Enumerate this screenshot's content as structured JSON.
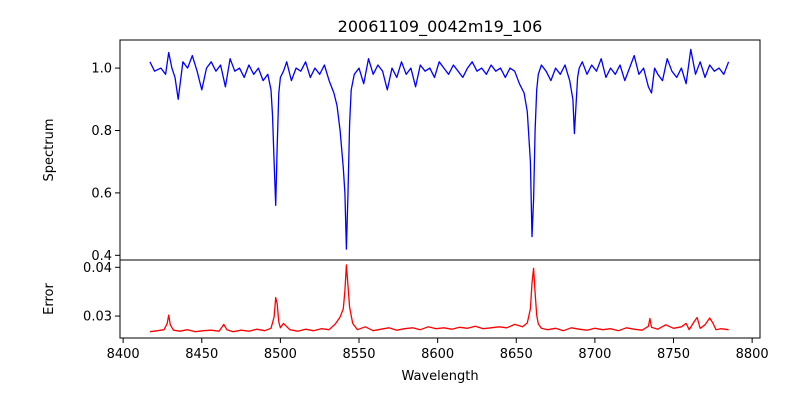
{
  "chart_data": {
    "type": "line",
    "title": "20061109_0042m19_106",
    "xlabel": "Wavelength",
    "xlim": [
      8398,
      8805
    ],
    "xticks": [
      8400,
      8450,
      8500,
      8550,
      8600,
      8650,
      8700,
      8750,
      8800
    ],
    "panels": [
      {
        "name": "spectrum",
        "ylabel": "Spectrum",
        "ylim": [
          0.385,
          1.09
        ],
        "yticks": [
          0.4,
          0.6,
          0.8,
          1.0
        ],
        "grid": false,
        "series": [
          {
            "color": "#0000ff",
            "x": [
              8417,
              8420,
              8424,
              8427,
              8429,
              8431,
              8433,
              8435,
              8438,
              8441,
              8444,
              8447,
              8450,
              8453,
              8456,
              8459,
              8462,
              8465,
              8468,
              8471,
              8474,
              8477,
              8480,
              8483,
              8486,
              8489,
              8492,
              8494,
              8495,
              8496,
              8497,
              8498,
              8499,
              8500,
              8502,
              8504,
              8507,
              8510,
              8513,
              8516,
              8519,
              8522,
              8525,
              8528,
              8531,
              8534,
              8536,
              8538,
              8539,
              8540,
              8541,
              8542,
              8543,
              8544,
              8545,
              8547,
              8550,
              8553,
              8556,
              8559,
              8562,
              8565,
              8568,
              8571,
              8574,
              8577,
              8580,
              8583,
              8586,
              8589,
              8592,
              8595,
              8598,
              8601,
              8604,
              8607,
              8610,
              8613,
              8616,
              8619,
              8622,
              8625,
              8628,
              8631,
              8634,
              8637,
              8640,
              8643,
              8646,
              8649,
              8652,
              8655,
              8657,
              8659,
              8660,
              8661,
              8662,
              8663,
              8664,
              8666,
              8669,
              8672,
              8675,
              8678,
              8681,
              8684,
              8686,
              8687,
              8688,
              8689,
              8690,
              8692,
              8695,
              8698,
              8701,
              8704,
              8707,
              8710,
              8713,
              8716,
              8719,
              8722,
              8725,
              8728,
              8731,
              8734,
              8736,
              8738,
              8740,
              8743,
              8746,
              8749,
              8752,
              8755,
              8758,
              8761,
              8764,
              8767,
              8770,
              8773,
              8776,
              8779,
              8782,
              8785
            ],
            "y": [
              1.02,
              0.99,
              1.0,
              0.98,
              1.05,
              1.0,
              0.97,
              0.9,
              1.02,
              1.0,
              1.04,
              0.99,
              0.93,
              1.0,
              1.02,
              0.99,
              1.01,
              0.94,
              1.03,
              0.99,
              1.0,
              0.97,
              1.01,
              0.98,
              1.0,
              0.96,
              0.98,
              0.93,
              0.85,
              0.7,
              0.56,
              0.75,
              0.92,
              0.97,
              0.99,
              1.02,
              0.96,
              1.0,
              0.99,
              1.02,
              0.97,
              1.0,
              0.98,
              1.01,
              0.96,
              0.92,
              0.88,
              0.8,
              0.74,
              0.68,
              0.6,
              0.42,
              0.6,
              0.82,
              0.93,
              0.98,
              1.0,
              0.95,
              1.03,
              0.98,
              1.01,
              0.99,
              0.93,
              1.0,
              0.97,
              1.02,
              0.98,
              1.0,
              0.94,
              1.01,
              0.99,
              1.0,
              0.97,
              1.02,
              1.0,
              0.98,
              1.01,
              0.99,
              0.97,
              1.0,
              1.02,
              0.99,
              1.0,
              0.98,
              1.01,
              0.99,
              1.0,
              0.97,
              1.0,
              0.99,
              0.95,
              0.92,
              0.86,
              0.7,
              0.46,
              0.58,
              0.8,
              0.93,
              0.98,
              1.01,
              0.99,
              0.96,
              1.0,
              0.98,
              1.01,
              0.96,
              0.9,
              0.79,
              0.88,
              0.97,
              1.0,
              1.02,
              0.98,
              1.01,
              0.99,
              1.03,
              0.97,
              1.0,
              0.98,
              1.01,
              0.96,
              1.0,
              1.04,
              0.98,
              1.0,
              0.94,
              0.92,
              1.0,
              0.98,
              0.96,
              1.03,
              0.99,
              0.97,
              1.0,
              0.95,
              1.06,
              0.98,
              1.02,
              0.97,
              1.01,
              0.99,
              1.0,
              0.98,
              1.02
            ]
          }
        ]
      },
      {
        "name": "error",
        "ylabel": "Error",
        "ylim": [
          0.0255,
          0.0415
        ],
        "yticks": [
          0.03,
          0.04
        ],
        "grid": false,
        "series": [
          {
            "color": "#ff0000",
            "x": [
              8417,
              8422,
              8426,
              8428,
              8429,
              8430,
              8432,
              8436,
              8441,
              8446,
              8451,
              8456,
              8461,
              8464,
              8466,
              8470,
              8475,
              8480,
              8485,
              8490,
              8494,
              8496,
              8497,
              8498,
              8499,
              8500,
              8502,
              8506,
              8511,
              8516,
              8521,
              8526,
              8531,
              8535,
              8538,
              8540,
              8541,
              8542,
              8543,
              8544,
              8546,
              8549,
              8554,
              8559,
              8564,
              8569,
              8574,
              8579,
              8584,
              8589,
              8594,
              8599,
              8604,
              8609,
              8614,
              8619,
              8624,
              8629,
              8634,
              8639,
              8644,
              8649,
              8654,
              8657,
              8659,
              8660,
              8661,
              8662,
              8663,
              8664,
              8666,
              8670,
              8675,
              8680,
              8685,
              8690,
              8695,
              8700,
              8705,
              8710,
              8715,
              8720,
              8725,
              8730,
              8734,
              8735,
              8736,
              8740,
              8745,
              8750,
              8755,
              8758,
              8760,
              8763,
              8765,
              8767,
              8770,
              8773,
              8775,
              8777,
              8780,
              8785
            ],
            "y": [
              0.0268,
              0.027,
              0.0272,
              0.0285,
              0.0302,
              0.0282,
              0.0271,
              0.0269,
              0.0272,
              0.0268,
              0.027,
              0.0271,
              0.0269,
              0.0283,
              0.0272,
              0.0268,
              0.0271,
              0.0269,
              0.0273,
              0.027,
              0.0275,
              0.0298,
              0.0338,
              0.0325,
              0.0288,
              0.0276,
              0.0285,
              0.0272,
              0.0269,
              0.0273,
              0.027,
              0.0274,
              0.0272,
              0.0284,
              0.0298,
              0.0315,
              0.0352,
              0.0405,
              0.0362,
              0.0318,
              0.0285,
              0.0272,
              0.0278,
              0.027,
              0.0273,
              0.0276,
              0.0271,
              0.0274,
              0.0276,
              0.0272,
              0.0278,
              0.0274,
              0.0276,
              0.0273,
              0.0277,
              0.0275,
              0.0279,
              0.0274,
              0.0276,
              0.0278,
              0.0276,
              0.0283,
              0.0278,
              0.0286,
              0.0315,
              0.0368,
              0.0398,
              0.0348,
              0.0302,
              0.0284,
              0.0275,
              0.0272,
              0.0275,
              0.027,
              0.0276,
              0.0273,
              0.0271,
              0.0275,
              0.0272,
              0.0274,
              0.027,
              0.0276,
              0.0273,
              0.0271,
              0.0279,
              0.0295,
              0.0277,
              0.0273,
              0.0282,
              0.0275,
              0.0278,
              0.0285,
              0.0272,
              0.0288,
              0.0297,
              0.0275,
              0.0282,
              0.0296,
              0.0286,
              0.0272,
              0.0274,
              0.0272
            ]
          }
        ]
      }
    ]
  }
}
